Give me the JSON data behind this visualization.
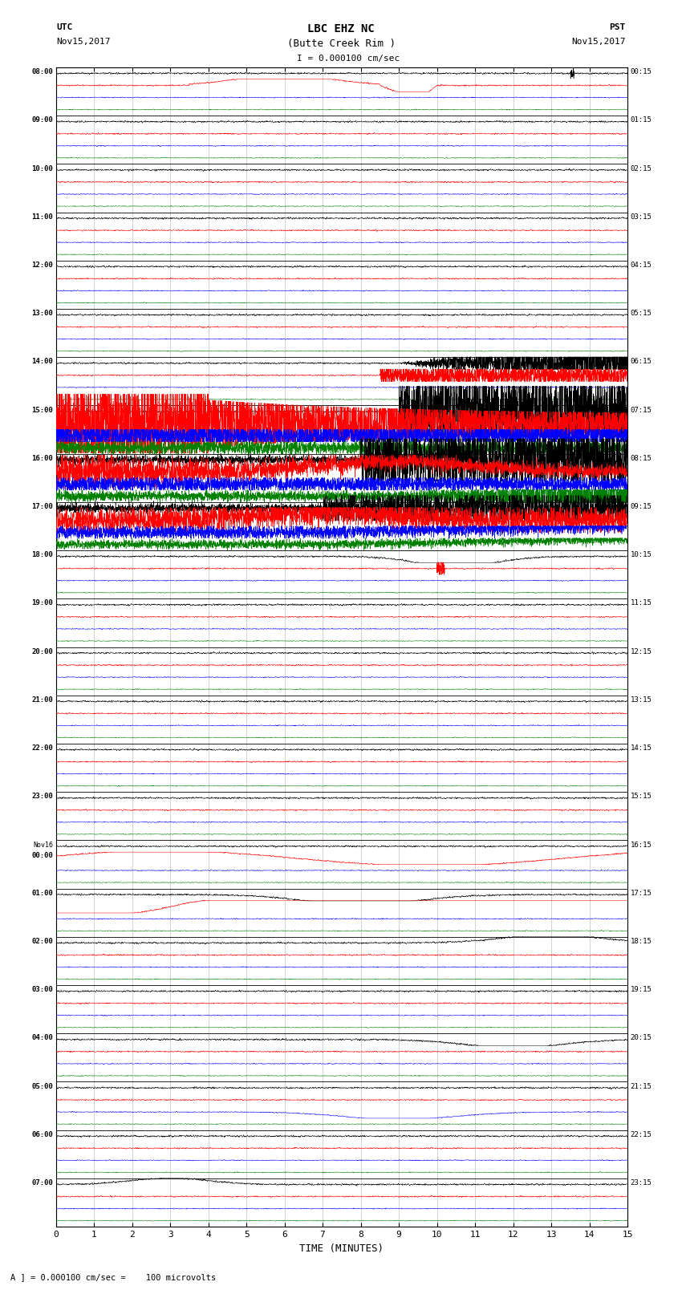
{
  "title_line1": "LBC EHZ NC",
  "title_line2": "(Butte Creek Rim )",
  "title_line3": "I = 0.000100 cm/sec",
  "label_utc": "UTC",
  "label_pst": "PST",
  "date_left": "Nov15,2017",
  "date_right": "Nov15,2017",
  "xlabel": "TIME (MINUTES)",
  "footer": "A ] = 0.000100 cm/sec =    100 microvolts",
  "bg_color": "#ffffff",
  "grid_color": "#999999",
  "trace_colors": [
    "black",
    "red",
    "blue",
    "green"
  ],
  "left_times_utc": [
    "08:00",
    "09:00",
    "10:00",
    "11:00",
    "12:00",
    "13:00",
    "14:00",
    "15:00",
    "16:00",
    "17:00",
    "18:00",
    "19:00",
    "20:00",
    "21:00",
    "22:00",
    "23:00",
    "Nov16\n00:00",
    "01:00",
    "02:00",
    "03:00",
    "04:00",
    "05:00",
    "06:00",
    "07:00"
  ],
  "right_times_pst": [
    "00:15",
    "01:15",
    "02:15",
    "03:15",
    "04:15",
    "05:15",
    "06:15",
    "07:15",
    "08:15",
    "09:15",
    "10:15",
    "11:15",
    "12:15",
    "13:15",
    "14:15",
    "15:15",
    "16:15",
    "17:15",
    "18:15",
    "19:15",
    "20:15",
    "21:15",
    "22:15",
    "23:15"
  ],
  "n_rows": 24,
  "n_cols": 4,
  "x_min": 0,
  "x_max": 15,
  "x_ticks": [
    0,
    1,
    2,
    3,
    4,
    5,
    6,
    7,
    8,
    9,
    10,
    11,
    12,
    13,
    14,
    15
  ],
  "seed": 42
}
